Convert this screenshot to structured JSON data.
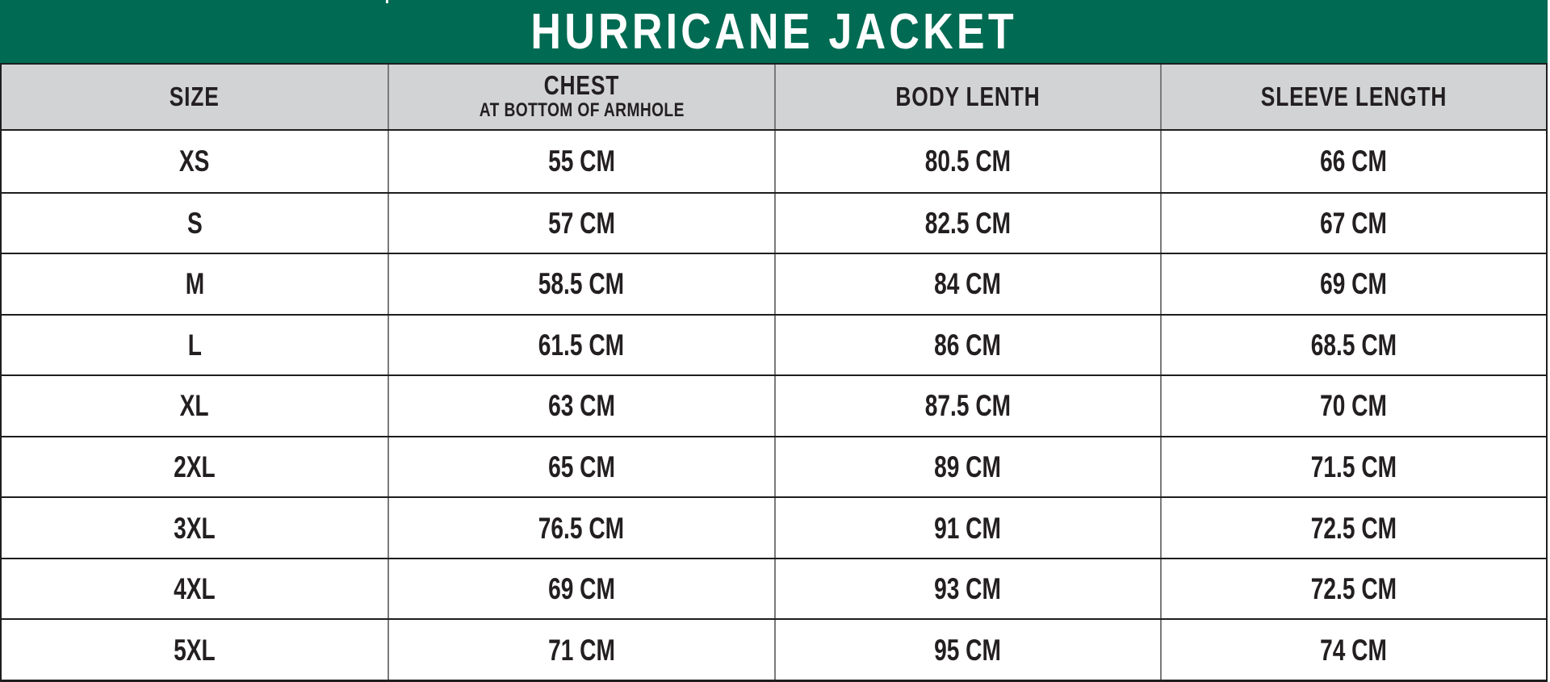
{
  "colors": {
    "banner_green": "#006B52",
    "header_gray": "#D2D3D5",
    "row_line_black": "#1E1E1E",
    "column_line_gray": "#7A7A7A",
    "text_dark": "#231F20",
    "title_white": "#FFFFFF"
  },
  "chart_data": {
    "type": "table",
    "title": "HURRICANE JACKET",
    "units": "CM",
    "columns": [
      {
        "label": "SIZE",
        "sublabel": ""
      },
      {
        "label": "CHEST",
        "sublabel": "AT BOTTOM OF ARMHOLE"
      },
      {
        "label": "BODY LENTH",
        "sublabel": ""
      },
      {
        "label": "SLEEVE LENGTH",
        "sublabel": ""
      }
    ],
    "rows": [
      {
        "size": "XS",
        "chest": "55 CM",
        "body_length": "80.5 CM",
        "sleeve_length": "66 CM"
      },
      {
        "size": "S",
        "chest": "57 CM",
        "body_length": "82.5 CM",
        "sleeve_length": "67 CM"
      },
      {
        "size": "M",
        "chest": "58.5 CM",
        "body_length": "84 CM",
        "sleeve_length": "69 CM"
      },
      {
        "size": "L",
        "chest": "61.5 CM",
        "body_length": "86 CM",
        "sleeve_length": "68.5 CM"
      },
      {
        "size": "XL",
        "chest": "63 CM",
        "body_length": "87.5 CM",
        "sleeve_length": "70 CM"
      },
      {
        "size": "2XL",
        "chest": "65 CM",
        "body_length": "89 CM",
        "sleeve_length": "71.5 CM"
      },
      {
        "size": "3XL",
        "chest": "76.5 CM",
        "body_length": "91 CM",
        "sleeve_length": "72.5 CM"
      },
      {
        "size": "4XL",
        "chest": "69 CM",
        "body_length": "93 CM",
        "sleeve_length": "72.5 CM"
      },
      {
        "size": "5XL",
        "chest": "71 CM",
        "body_length": "95 CM",
        "sleeve_length": "74 CM"
      }
    ]
  }
}
